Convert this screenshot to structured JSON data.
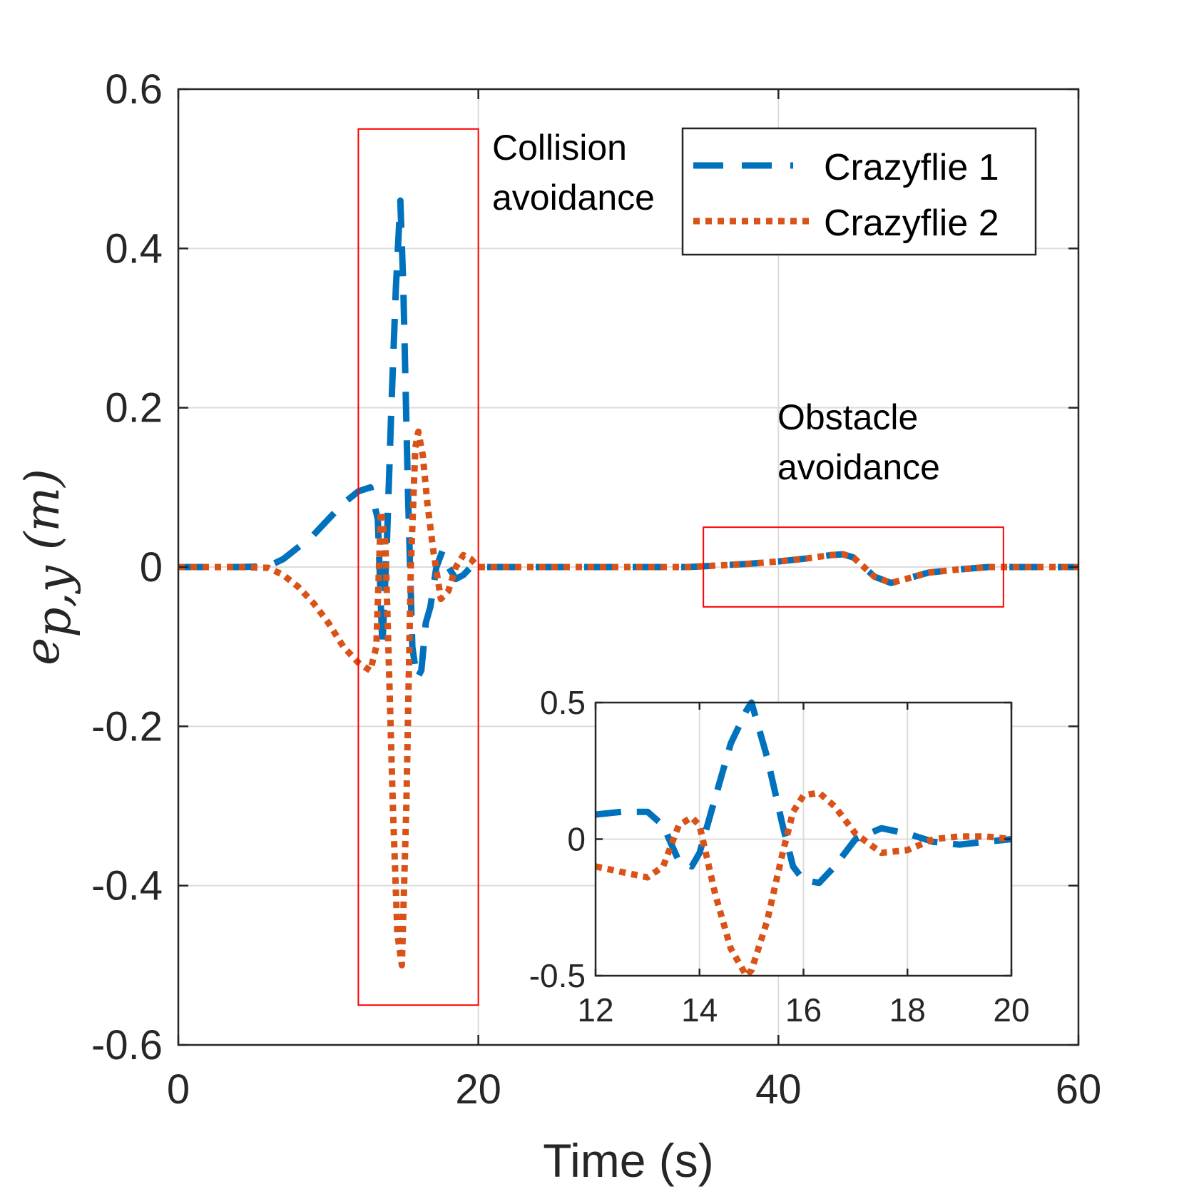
{
  "colors": {
    "series1": "#0072BD",
    "series2": "#D95319",
    "box": "#FF0000",
    "grid": "#DCDCDC",
    "axis": "#262626"
  },
  "chart_data": [
    {
      "type": "line",
      "name": "main",
      "xlabel": "Time (s)",
      "ylabel": "e_{p,y} (m)",
      "ylabel_parts": {
        "symbol": "e",
        "subscript": "p,y",
        "unit": "(m)"
      },
      "xlim": [
        0,
        60
      ],
      "ylim": [
        -0.6,
        0.6
      ],
      "xticks": [
        0,
        20,
        40,
        60
      ],
      "xtick_labels": [
        "0",
        "20",
        "40",
        "60"
      ],
      "yticks": [
        -0.6,
        -0.4,
        -0.2,
        0,
        0.2,
        0.4,
        0.6
      ],
      "ytick_labels": [
        "-0.6",
        "-0.4",
        "-0.2",
        "0",
        "0.2",
        "0.4",
        "0.6"
      ],
      "grid": true,
      "legend_position": "top-right",
      "series": [
        {
          "name": "Crazyflie 1",
          "style": "dashed",
          "x": [
            0,
            4,
            6,
            7,
            8,
            9,
            10,
            11,
            12,
            12.8,
            13.3,
            13.6,
            13.9,
            14.2,
            14.5,
            14.8,
            15.0,
            15.3,
            15.6,
            15.9,
            16.2,
            16.5,
            16.8,
            17.2,
            17.6,
            18.0,
            18.5,
            19.0,
            19.5,
            20,
            21,
            23,
            26,
            30,
            34,
            36,
            38,
            40,
            42,
            43.5,
            44.3,
            45,
            45.7,
            46.4,
            47.5,
            48.5,
            50,
            52,
            54,
            56,
            58,
            60
          ],
          "y": [
            0,
            0,
            0.001,
            0.01,
            0.025,
            0.04,
            0.06,
            0.08,
            0.095,
            0.1,
            0.06,
            -0.1,
            0.03,
            0.2,
            0.35,
            0.46,
            0.35,
            0.1,
            -0.1,
            -0.14,
            -0.13,
            -0.07,
            -0.05,
            0.0,
            0.02,
            0.0,
            -0.015,
            -0.01,
            0.0,
            0.0,
            0.0,
            0.0,
            0.0,
            0.0,
            0.0,
            0.002,
            0.004,
            0.007,
            0.011,
            0.015,
            0.016,
            0.012,
            0.0,
            -0.012,
            -0.02,
            -0.015,
            -0.007,
            -0.003,
            0.0,
            0.0,
            0.0,
            0.0
          ]
        },
        {
          "name": "Crazyflie 2",
          "style": "dotted",
          "x": [
            0,
            4,
            6,
            7,
            8,
            9,
            10,
            11,
            12,
            12.8,
            13.2,
            13.5,
            13.8,
            14.0,
            14.3,
            14.6,
            14.9,
            15.2,
            15.5,
            15.8,
            16.0,
            16.3,
            16.6,
            17.0,
            17.5,
            18.0,
            18.5,
            19.0,
            19.5,
            20,
            21,
            23,
            26,
            30,
            34,
            36,
            38,
            40,
            42,
            43.5,
            44.3,
            45,
            45.7,
            46.4,
            47.5,
            48.5,
            50,
            52,
            54,
            56,
            58,
            60
          ],
          "y": [
            0,
            0,
            -0.001,
            -0.01,
            -0.025,
            -0.045,
            -0.07,
            -0.1,
            -0.12,
            -0.13,
            -0.1,
            0.07,
            0.03,
            -0.1,
            -0.3,
            -0.46,
            -0.5,
            -0.3,
            0.0,
            0.15,
            0.17,
            0.14,
            0.08,
            0.02,
            -0.04,
            -0.03,
            0.0,
            0.015,
            0.01,
            0.0,
            0.0,
            0.0,
            0.0,
            0.0,
            0.0,
            0.002,
            0.004,
            0.007,
            0.011,
            0.015,
            0.016,
            0.012,
            0.0,
            -0.012,
            -0.02,
            -0.015,
            -0.007,
            -0.003,
            0.0,
            0.0,
            0.0,
            0.0
          ]
        }
      ],
      "annotations": [
        {
          "lines": [
            "Collision",
            "avoidance"
          ],
          "box_x": [
            12,
            20
          ],
          "box_y": [
            -0.55,
            0.55
          ]
        },
        {
          "lines": [
            "Obstacle",
            "avoidance"
          ],
          "box_x": [
            35,
            55
          ],
          "box_y": [
            -0.05,
            0.05
          ]
        }
      ]
    },
    {
      "type": "line",
      "name": "inset",
      "xlim": [
        12,
        20
      ],
      "ylim": [
        -0.5,
        0.5
      ],
      "xticks": [
        12,
        14,
        16,
        18,
        20
      ],
      "xtick_labels": [
        "12",
        "14",
        "16",
        "18",
        "20"
      ],
      "yticks": [
        -0.5,
        0,
        0.5
      ],
      "ytick_labels": [
        "-0.5",
        "0",
        "0.5"
      ],
      "grid": true,
      "series": [
        {
          "name": "Crazyflie 1",
          "style": "dashed",
          "x": [
            12.0,
            12.5,
            13.0,
            13.3,
            13.6,
            13.85,
            14.0,
            14.3,
            14.6,
            14.9,
            15.0,
            15.3,
            15.6,
            15.8,
            16.0,
            16.3,
            16.6,
            17.0,
            17.5,
            18.0,
            18.5,
            19.0,
            19.5,
            20.0
          ],
          "y": [
            0.09,
            0.1,
            0.1,
            0.05,
            -0.08,
            -0.1,
            -0.05,
            0.15,
            0.35,
            0.47,
            0.5,
            0.3,
            0.05,
            -0.1,
            -0.15,
            -0.16,
            -0.1,
            0.0,
            0.04,
            0.02,
            -0.01,
            -0.02,
            -0.01,
            0.0
          ]
        },
        {
          "name": "Crazyflie 2",
          "style": "dotted",
          "x": [
            12.0,
            12.5,
            13.0,
            13.3,
            13.6,
            13.85,
            14.0,
            14.3,
            14.6,
            14.9,
            15.0,
            15.3,
            15.6,
            15.8,
            16.0,
            16.3,
            16.6,
            17.0,
            17.5,
            18.0,
            18.5,
            19.0,
            19.5,
            20.0
          ],
          "y": [
            -0.1,
            -0.12,
            -0.14,
            -0.1,
            0.05,
            0.08,
            0.05,
            -0.2,
            -0.4,
            -0.5,
            -0.48,
            -0.3,
            -0.05,
            0.1,
            0.16,
            0.17,
            0.12,
            0.02,
            -0.05,
            -0.04,
            0.0,
            0.01,
            0.01,
            0.0
          ]
        }
      ]
    }
  ]
}
